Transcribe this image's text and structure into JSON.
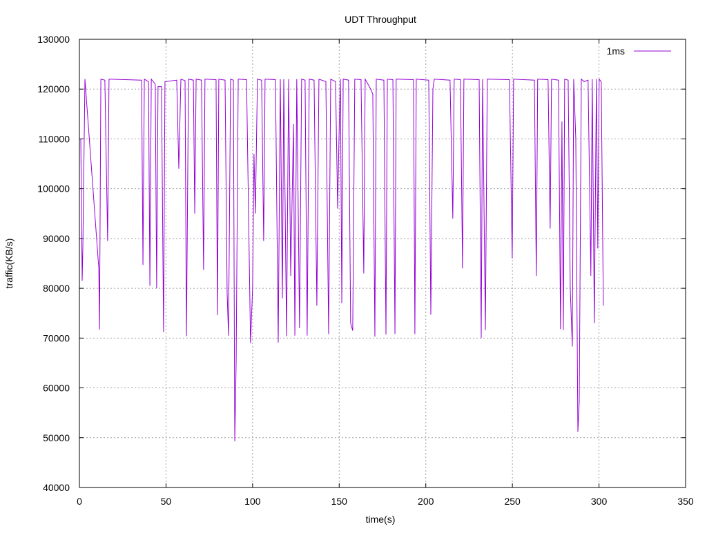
{
  "chart_data": {
    "type": "line",
    "title": "UDT Throughput",
    "x_label": "time(s)",
    "y_label": "traffic(KB/s)",
    "xlim": [
      0,
      350
    ],
    "xticks": [
      0,
      50,
      100,
      150,
      200,
      250,
      300,
      350
    ],
    "ylim": [
      40000,
      130000
    ],
    "yticks": [
      40000,
      50000,
      60000,
      70000,
      80000,
      90000,
      100000,
      110000,
      120000,
      130000
    ],
    "grid": true,
    "legend": "top-right",
    "series": [
      {
        "name": "1ms",
        "color": "#9400d3",
        "x": [
          0.8,
          1.6,
          2,
          3.2,
          11.2,
          11.6,
          12.4,
          14.7,
          16.3,
          17.1,
          35.9,
          36.7,
          37.5,
          39.9,
          40.7,
          41.5,
          43.8,
          44.6,
          45.4,
          47.4,
          48.6,
          49.4,
          56.2,
          57.4,
          58.6,
          61,
          61.8,
          63,
          65.8,
          66.6,
          67.4,
          70.5,
          71.7,
          72.5,
          78.9,
          79.7,
          80.5,
          84.1,
          85.3,
          86.1,
          87.3,
          88.9,
          89.7,
          90.5,
          91.7,
          96.5,
          98.8,
          100,
          100.8,
          101.6,
          102.8,
          105.2,
          106.4,
          107.2,
          113.2,
          114.8,
          116,
          117.2,
          118,
          119.6,
          120.8,
          122,
          123.6,
          124.4,
          125.5,
          127.1,
          128.3,
          130.3,
          131.5,
          132.7,
          135.5,
          137.1,
          138.3,
          142.3,
          143.9,
          145.1,
          147.9,
          149.1,
          149.9,
          150.7,
          151.5,
          152.3,
          155.4,
          156.6,
          157.8,
          159,
          162.6,
          164.2,
          165,
          168.2,
          169.4,
          170.6,
          171.4,
          175.8,
          177,
          177.8,
          181,
          182.2,
          182.9,
          192.9,
          193.7,
          194.5,
          201.7,
          202.9,
          204.1,
          204.9,
          214,
          215.6,
          216.4,
          220,
          221.2,
          222,
          230.8,
          232,
          232.8,
          234.4,
          235.5,
          248.3,
          249.9,
          250.7,
          262.7,
          263.8,
          264.6,
          270.6,
          271.8,
          272.6,
          276.6,
          277.8,
          278.6,
          279.4,
          280.2,
          282.2,
          283.4,
          284.6,
          285.4,
          286.6,
          287.8,
          288.6,
          289.8,
          291.4,
          293.7,
          295.3,
          296.1,
          297.3,
          298.5,
          299.3,
          300.1,
          301.3,
          302.5
        ],
        "values": [
          110000,
          81500,
          88500,
          122000,
          84000,
          71700,
          122000,
          121800,
          89500,
          122000,
          121800,
          84700,
          122000,
          121500,
          80500,
          122000,
          121000,
          80000,
          120500,
          120500,
          71200,
          121500,
          121800,
          104000,
          122000,
          121700,
          70400,
          122000,
          121800,
          95000,
          122000,
          121800,
          83700,
          122000,
          121900,
          74600,
          122000,
          121800,
          79000,
          70500,
          122000,
          121800,
          49300,
          65000,
          122000,
          121900,
          69000,
          80000,
          107000,
          95000,
          122000,
          121800,
          89500,
          122000,
          121900,
          69100,
          122000,
          78000,
          122000,
          70400,
          122000,
          82500,
          113000,
          70500,
          122000,
          72000,
          122000,
          121800,
          70500,
          122000,
          121800,
          76500,
          122000,
          121500,
          70800,
          122000,
          121500,
          96000,
          110500,
          122000,
          77000,
          122000,
          121800,
          73000,
          71500,
          122000,
          121900,
          83000,
          122000,
          120000,
          119000,
          70300,
          122000,
          121800,
          70700,
          122000,
          121900,
          70800,
          122000,
          121900,
          70800,
          122000,
          121800,
          74700,
          120000,
          122000,
          121800,
          94000,
          122000,
          121900,
          84000,
          122000,
          121900,
          70000,
          122000,
          71600,
          122000,
          121900,
          86000,
          122000,
          121800,
          82500,
          122000,
          121900,
          92000,
          122000,
          121800,
          71800,
          113500,
          71600,
          122000,
          121800,
          80000,
          68300,
          122000,
          110000,
          51200,
          57300,
          122000,
          121500,
          121800,
          82500,
          122000,
          73000,
          122000,
          88000,
          122000,
          121500,
          76500
        ]
      }
    ]
  }
}
